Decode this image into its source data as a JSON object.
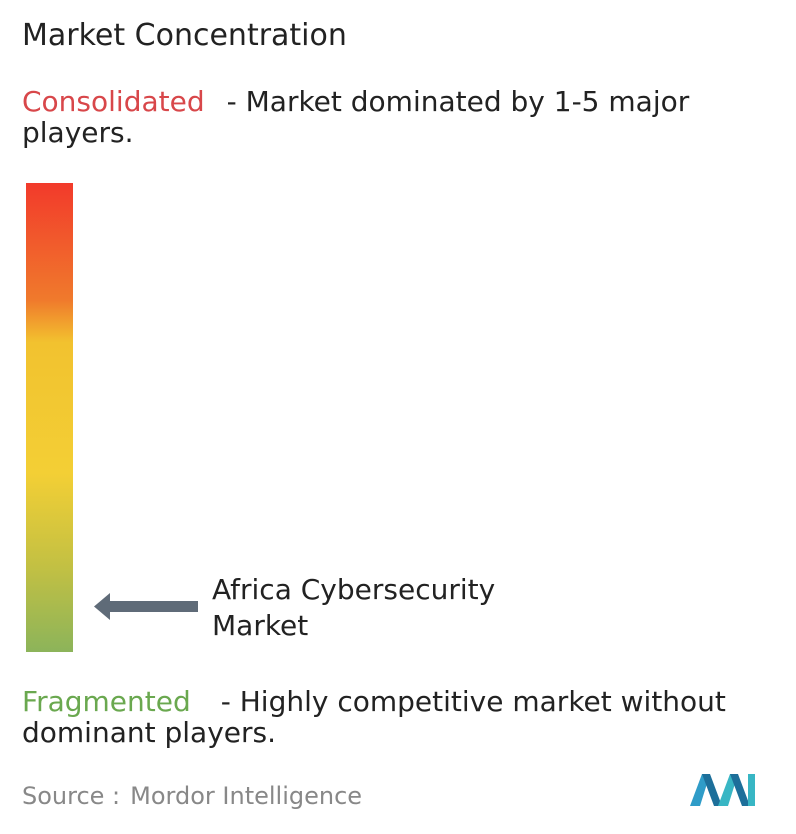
{
  "title": "Market Concentration",
  "consolidated": {
    "label": "Consolidated",
    "description": "- Market dominated by 1-5 major players."
  },
  "marker": {
    "label": "Africa Cybersecurity Market"
  },
  "fragmented": {
    "label": "Fragmented",
    "description": "- Highly competitive market without dominant players."
  },
  "source": {
    "label": "Source :",
    "name": "Mordor Intelligence"
  }
}
